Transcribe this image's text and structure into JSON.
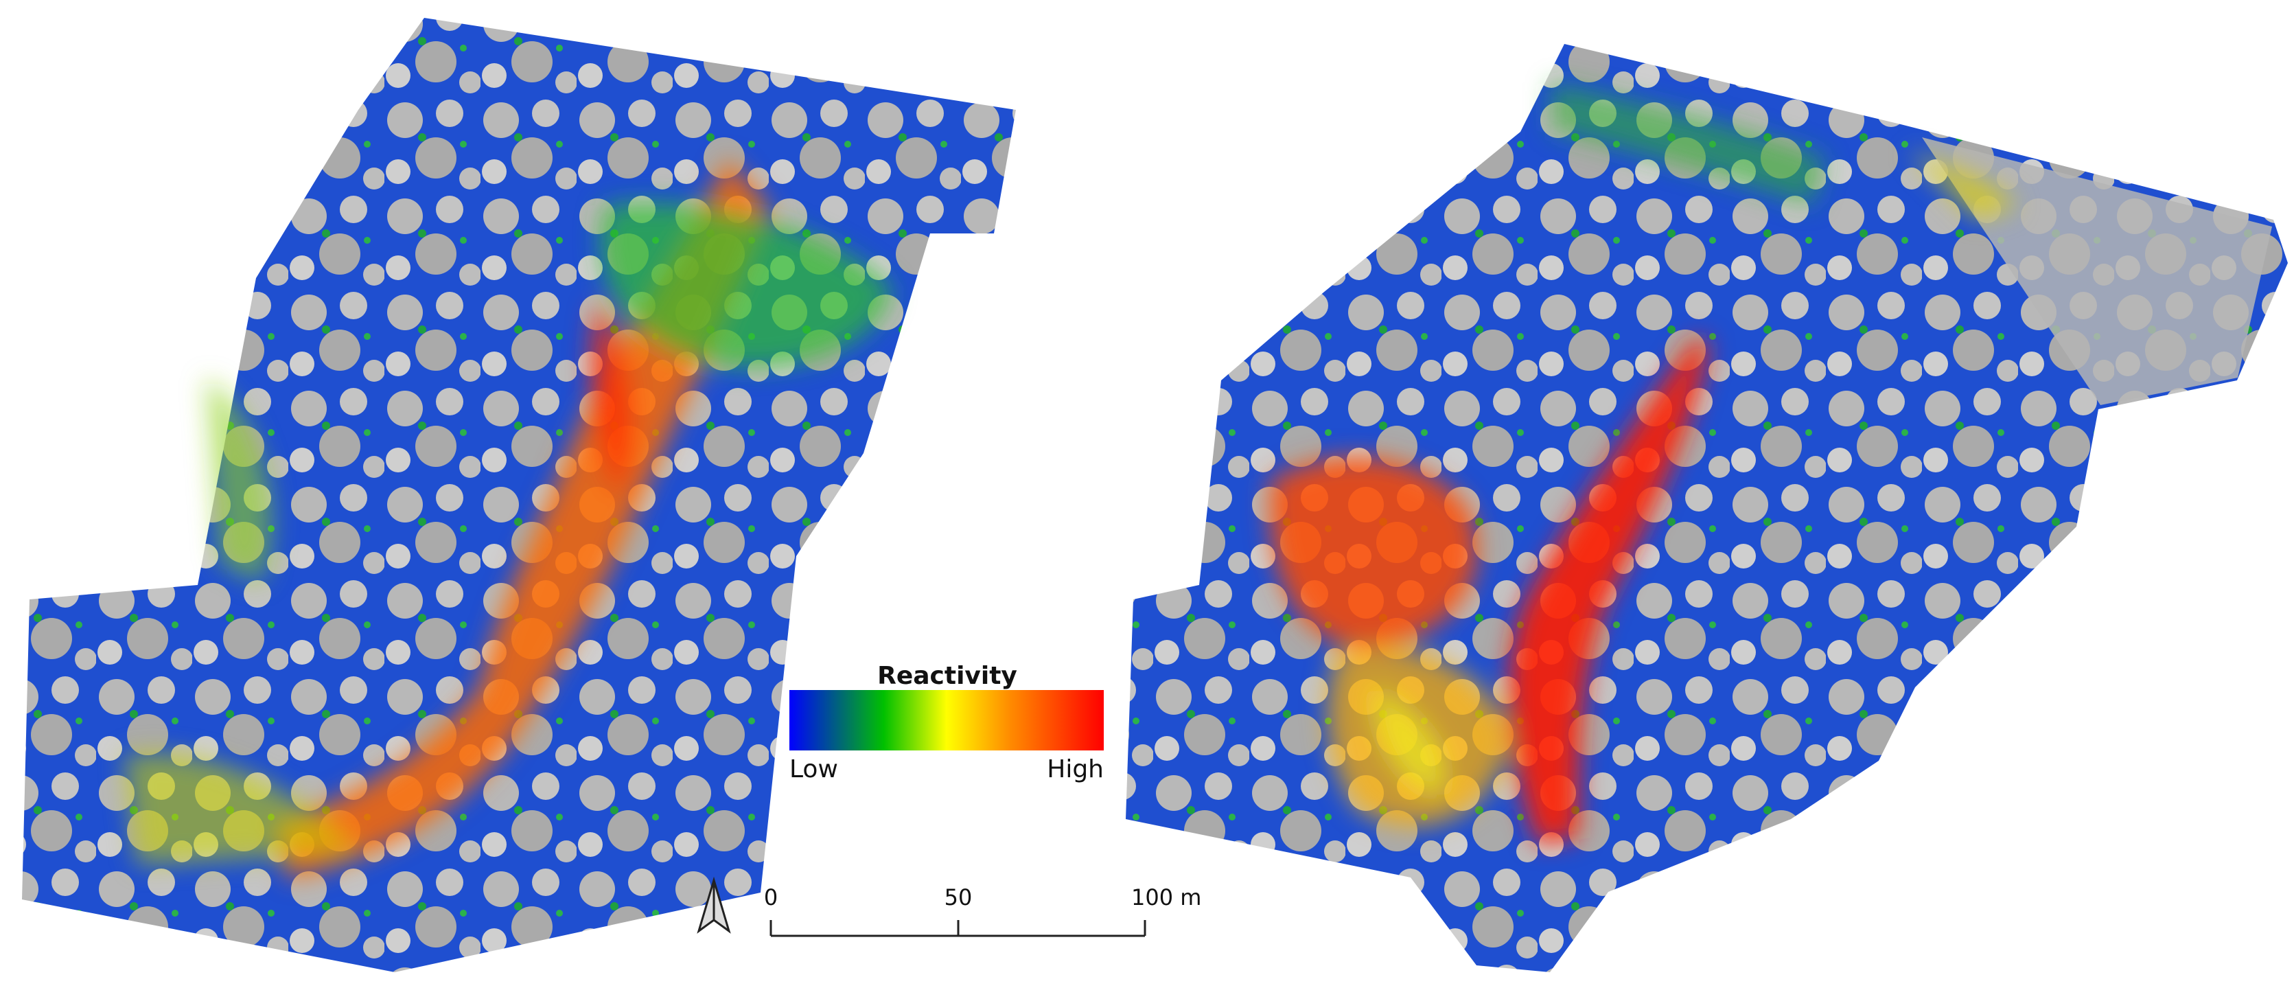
{
  "legend": {
    "title": "Reactivity",
    "low": "Low",
    "high": "High"
  },
  "scale_bar": {
    "labels": [
      "0",
      "50",
      "100 m"
    ]
  }
}
